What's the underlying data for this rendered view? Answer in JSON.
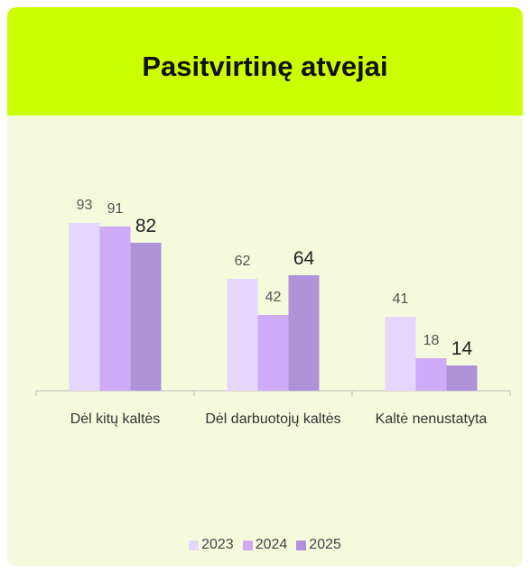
{
  "chart_data": {
    "type": "bar",
    "title": "Pasitvirtinę atvejai",
    "categories": [
      "Dėl kitų kaltės",
      "Dėl darbuotojų kaltės",
      "Kaltė nenustatyta"
    ],
    "series": [
      {
        "name": "2023",
        "color": "#e5d6fb",
        "values": [
          93,
          62,
          41
        ]
      },
      {
        "name": "2024",
        "color": "#cfaaf8",
        "values": [
          91,
          42,
          18
        ]
      },
      {
        "name": "2025",
        "color": "#ae93d8",
        "values": [
          82,
          64,
          14
        ]
      }
    ]
  }
}
